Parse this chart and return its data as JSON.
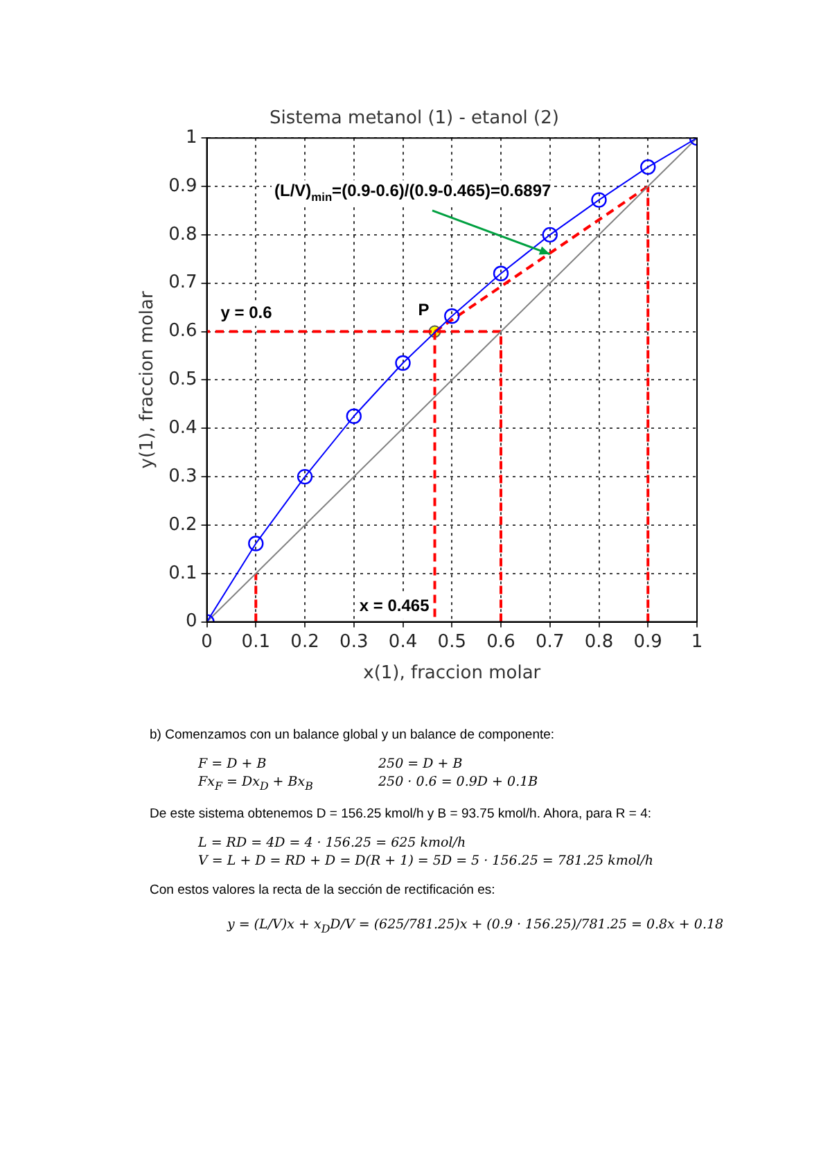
{
  "chart_data": {
    "type": "line",
    "title": "Sistema metanol (1) - etanol (2)",
    "xlabel": "x(1), fraccion molar",
    "ylabel": "y(1), fraccion molar",
    "xlim": [
      0,
      1
    ],
    "ylim": [
      0,
      1
    ],
    "xticks": [
      0,
      0.1,
      0.2,
      0.3,
      0.4,
      0.5,
      0.6,
      0.7,
      0.8,
      0.9,
      1
    ],
    "yticks": [
      0,
      0.1,
      0.2,
      0.3,
      0.4,
      0.5,
      0.6,
      0.7,
      0.8,
      0.9,
      1
    ],
    "grid": true,
    "series": [
      {
        "type": "line",
        "color": "#0000ff",
        "marker": "circle",
        "x": [
          0,
          0.1,
          0.2,
          0.3,
          0.4,
          0.5,
          0.6,
          0.7,
          0.8,
          0.9,
          1
        ],
        "values": [
          0,
          0.162,
          0.3,
          0.425,
          0.535,
          0.632,
          0.72,
          0.8,
          0.872,
          0.94,
          1
        ]
      },
      {
        "type": "line",
        "color": "#808080",
        "marker": "none",
        "x": [
          0,
          1
        ],
        "values": [
          0,
          1
        ]
      },
      {
        "type": "line",
        "color": "#ff0000",
        "marker": "none",
        "line_style": "dashed",
        "x": [
          0.465,
          0.9
        ],
        "values": [
          0.6,
          0.9
        ]
      },
      {
        "type": "line",
        "color": "#ff0000",
        "marker": "none",
        "line_style": "dashed",
        "x": [
          0.1,
          0.1
        ],
        "values": [
          0,
          0.1
        ]
      },
      {
        "type": "line",
        "color": "#ff0000",
        "marker": "none",
        "line_style": "dashed",
        "x": [
          0.465,
          0.465
        ],
        "values": [
          0.6,
          0
        ]
      },
      {
        "type": "line",
        "color": "#ff0000",
        "marker": "none",
        "line_style": "dashed",
        "x": [
          0.6,
          0.6
        ],
        "values": [
          0,
          0.6
        ]
      },
      {
        "type": "line",
        "color": "#ff0000",
        "marker": "none",
        "line_style": "dashed",
        "x": [
          0.9,
          0.9
        ],
        "values": [
          0,
          0.9
        ]
      },
      {
        "type": "line",
        "color": "#ff0000",
        "marker": "none",
        "line_style": "dashed",
        "x": [
          0.6,
          0
        ],
        "values": [
          0.6,
          0.6
        ]
      },
      {
        "type": "scatter",
        "color": "#ffff00",
        "marker": "circle",
        "x": [
          0.465
        ],
        "values": [
          0.6
        ]
      }
    ],
    "annotations": [
      {
        "text": "(L/V)$_{min}$=(0.9-0.6)/(0.9-0.465)=0.6897",
        "x": 0.7,
        "y": 0.76
      },
      {
        "text": "P",
        "x": 0.465,
        "y": 0.6
      },
      {
        "text": "y = 0.6",
        "x": 0,
        "y": 0.6
      },
      {
        "text": "x = 0.465",
        "x": 0.465,
        "y": 0
      },
      "b) Comenzamos con un balance global y un balance de componente:",
      "F = D + B",
      "250 = D + B",
      "Fx$_{F}$ = Dx$_{D}$ + Bx$_{B}$",
      "250 · 0.6 = 0.9D + 0.1B",
      "De este sistema obtenemos D = 156.25 kmol/h y B = 93.75 kmol/h. Ahora, para R = 4:",
      "L = RD = 4D = 4 · 156.25 = 625 kmol/h",
      "V = L + D = RD + D = D(R + 1) = 5D = 5 · 156.25 = 781.25 kmol/h",
      "Con estos valores la recta de la sección de rectificación es:",
      "y = (L/V)x + x$_{D}$D/V = (625/781.25)x + (0.9 · 156.25)/781.25 = 0.8x + 0.18"
    ]
  }
}
